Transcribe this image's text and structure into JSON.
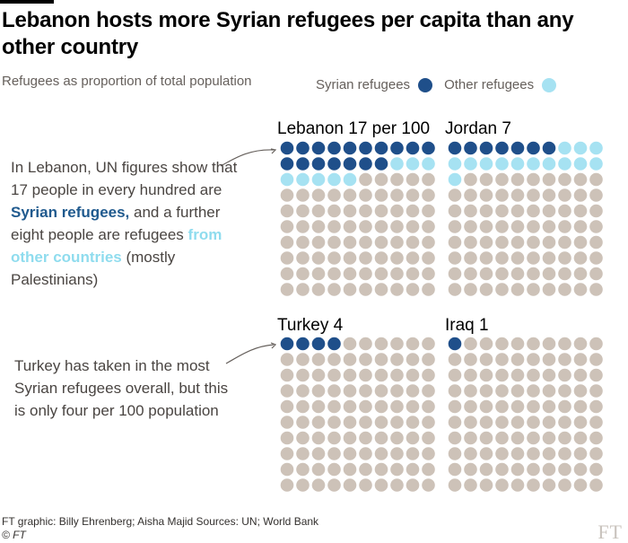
{
  "title": "Lebanon hosts more Syrian refugees per capita than any other country",
  "subtitle": "Refugees as proportion of total population",
  "legend": {
    "syrian": "Syrian refugees",
    "other": "Other refugees"
  },
  "colors": {
    "syrian": "#1f4f8a",
    "other": "#a6e2f2",
    "rest": "#cdc2b8"
  },
  "chart_data": {
    "type": "waffle",
    "unit": "per 100",
    "panels": [
      {
        "country": "Lebanon",
        "label": "Lebanon 17 per 100",
        "syrian": 17,
        "other": 8
      },
      {
        "country": "Jordan",
        "label": "Jordan 7",
        "syrian": 7,
        "other": 14
      },
      {
        "country": "Turkey",
        "label": "Turkey 4",
        "syrian": 4,
        "other": 0
      },
      {
        "country": "Iraq",
        "label": "Iraq 1",
        "syrian": 1,
        "other": 0
      }
    ]
  },
  "annotations": {
    "lebanon": {
      "part1": "In Lebanon, UN figures show that 17 people in every hundred are ",
      "syrian": "Syrian refugees,",
      "part2": " and a further eight people are refugees ",
      "other": "from other countries",
      "part3": " (mostly Palestinians)"
    },
    "turkey": "Turkey has taken in the most Syrian refugees overall, but this is only four per 100 population"
  },
  "footer": {
    "credit": "FT graphic: Billy Ehrenberg;  Aisha Majid   Sources: UN; World Bank",
    "copyright": "© FT"
  },
  "logo": "FT"
}
